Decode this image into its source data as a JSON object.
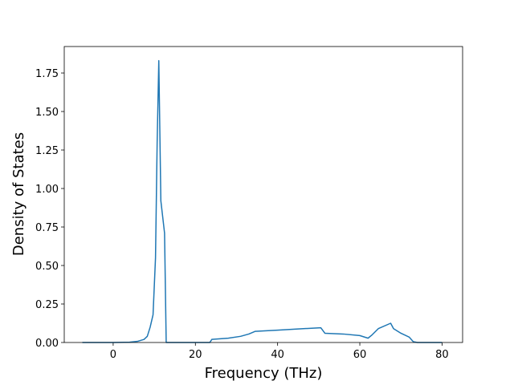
{
  "chart_data": {
    "type": "line",
    "xlabel": "Frequency (THz)",
    "ylabel": "Density of States",
    "xlim": [
      -11.9,
      85.0
    ],
    "ylim": [
      0,
      1.922
    ],
    "xticks": [
      0,
      20,
      40,
      60,
      80
    ],
    "yticks": [
      {
        "value": 0,
        "label": "0.00"
      },
      {
        "value": 0.25,
        "label": "0.25"
      },
      {
        "value": 0.5,
        "label": "0.50"
      },
      {
        "value": 0.75,
        "label": "0.75"
      },
      {
        "value": 1.0,
        "label": "1.00"
      },
      {
        "value": 1.25,
        "label": "1.25"
      },
      {
        "value": 1.5,
        "label": "1.50"
      },
      {
        "value": 1.75,
        "label": "1.75"
      }
    ],
    "grid": false,
    "series": [
      {
        "color": "#1f77b4",
        "x": [
          -7.5,
          0,
          4,
          6,
          7.5,
          8.3,
          9,
          9.7,
          10.3,
          10.7,
          11.1,
          11.6,
          12.5,
          12.9,
          20,
          23.5,
          24,
          28,
          31,
          33,
          34.5,
          40,
          45,
          50.5,
          51.5,
          56,
          60,
          62,
          63,
          64.5,
          67.5,
          68.2,
          70,
          72,
          73,
          74,
          80
        ],
        "values": [
          0,
          0,
          0.002,
          0.008,
          0.02,
          0.04,
          0.1,
          0.18,
          0.55,
          1.3,
          1.83,
          0.92,
          0.71,
          0,
          0,
          0,
          0.02,
          0.028,
          0.04,
          0.055,
          0.072,
          0.08,
          0.088,
          0.096,
          0.06,
          0.055,
          0.045,
          0.028,
          0.05,
          0.09,
          0.125,
          0.09,
          0.06,
          0.035,
          0.005,
          0,
          0
        ]
      }
    ]
  }
}
